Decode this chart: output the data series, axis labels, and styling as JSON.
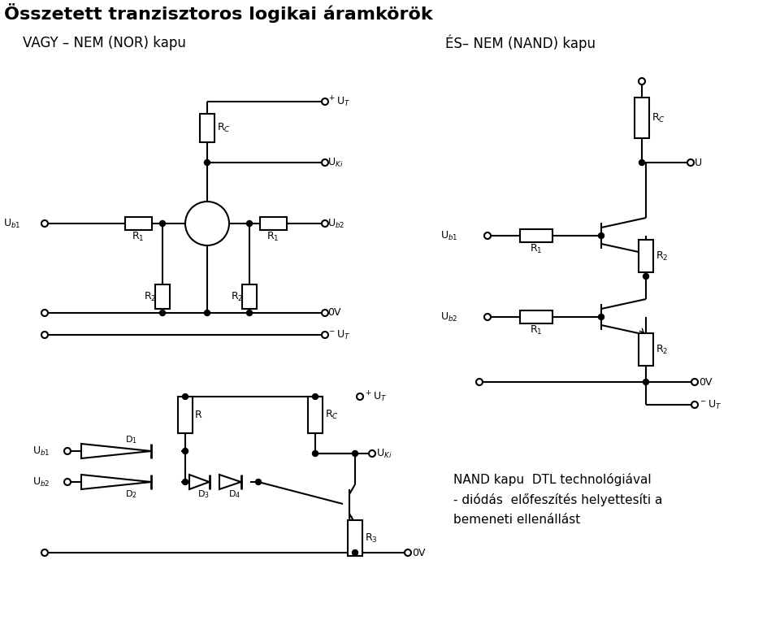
{
  "title": "Összetett tranzisztoros logikai áramkörök",
  "sub_left": "VAGY – NEM (NOR) kapu",
  "sub_right": "ÉS– NEM (NAND) kapu",
  "nand_dtl_1": "NAND kapu  DTL technológiával",
  "nand_dtl_2": "- diódás  előfeszítés helyettesíti a",
  "nand_dtl_3": "bemeneti ellenállást",
  "bg": "#ffffff",
  "lc": "#000000",
  "lw": 1.5
}
